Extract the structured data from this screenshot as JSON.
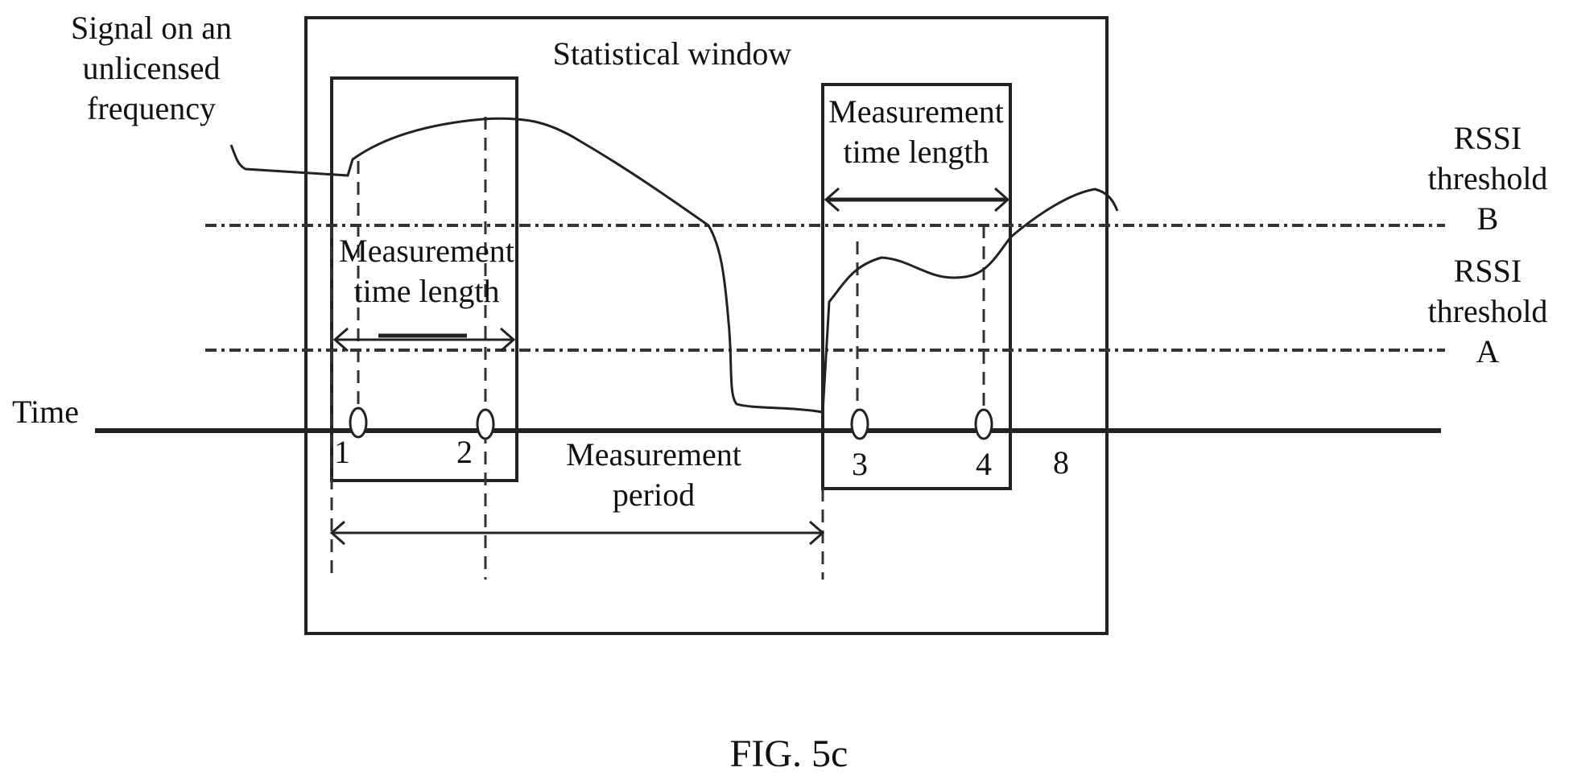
{
  "figure": {
    "caption": "FIG. 5c",
    "labels": {
      "signal": [
        "Signal on an",
        "unlicensed",
        "frequency"
      ],
      "statistical_window": "Statistical window",
      "measurement_time_length_1": [
        "Measurement",
        "time length"
      ],
      "measurement_time_length_2": [
        "Measurement",
        "time length"
      ],
      "rssi_threshold_b": [
        "RSSI",
        "threshold",
        "B"
      ],
      "rssi_threshold_a": [
        "RSSI",
        "threshold",
        "A"
      ],
      "time_axis": "Time",
      "measurement_period": [
        "Measurement",
        "period"
      ]
    },
    "points": [
      "1",
      "2",
      "3",
      "4"
    ],
    "extra_label": "8",
    "colors": {
      "ink": "#222222",
      "background": "#ffffff"
    }
  }
}
